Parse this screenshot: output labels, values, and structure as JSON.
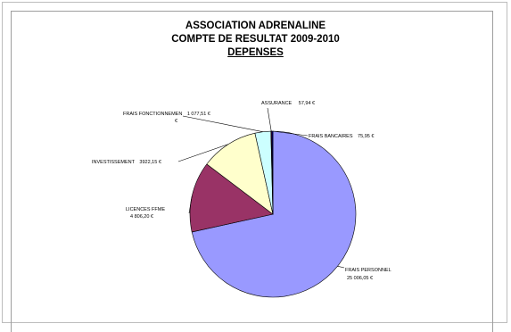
{
  "chart_data": {
    "type": "pie",
    "title": "ASSOCIATION ADRENALINE",
    "subtitle": "COMPTE DE RESULTAT 2009-2010",
    "heading": "DEPENSES",
    "slices": [
      {
        "name": "FRAIS PERSONNEL",
        "value": 25006.05,
        "value_label": "25 006,05 €",
        "color": "#9999ff"
      },
      {
        "name": "LICENCES FFME",
        "value": 4806.2,
        "value_label": "4 806,20 €",
        "color": "#993366"
      },
      {
        "name": "INVESTISSEMENT",
        "value": 3922.15,
        "value_label": "3922,15 €",
        "color": "#ffffcc"
      },
      {
        "name": "FRAIS FONCTIONNEMEN",
        "value": 1077.51,
        "value_label": "1 077,51 €",
        "color": "#ccffff"
      },
      {
        "name": "ASSURANCE",
        "value": 57.94,
        "value_label": "57,94 €",
        "color": "#660066"
      },
      {
        "name": "FRAIS BANCAIRES",
        "value": 75.95,
        "value_label": "75,95 €",
        "color": "#000080"
      }
    ],
    "start_angle_deg": 0,
    "direction": "clockwise"
  }
}
